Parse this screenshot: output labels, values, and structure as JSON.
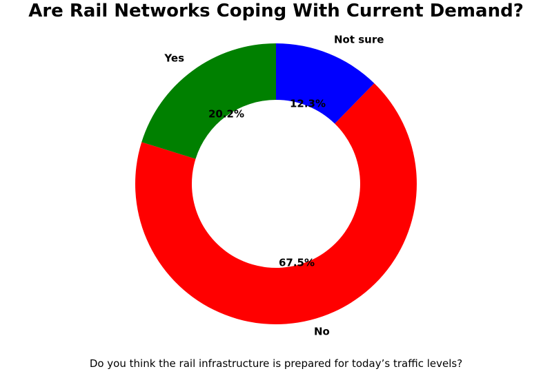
{
  "chart_data": {
    "type": "pie",
    "subtype": "donut",
    "title": "Are Rail Networks Coping With Current Demand?",
    "caption": "Do you think the rail infrastructure is prepared for today’s traffic levels?",
    "labels": [
      "Not sure",
      "No",
      "Yes"
    ],
    "values": [
      12.3,
      67.5,
      20.2
    ],
    "pct_labels": [
      "12.3%",
      "67.5%",
      "20.2%"
    ],
    "colors": [
      "#0000ff",
      "#ff0000",
      "#008000"
    ],
    "start_angle_deg": 90,
    "direction": "clockwise",
    "inner_radius_ratio": 0.6,
    "legend": "none",
    "label_text_color": "#000000",
    "background_color": "#ffffff"
  }
}
